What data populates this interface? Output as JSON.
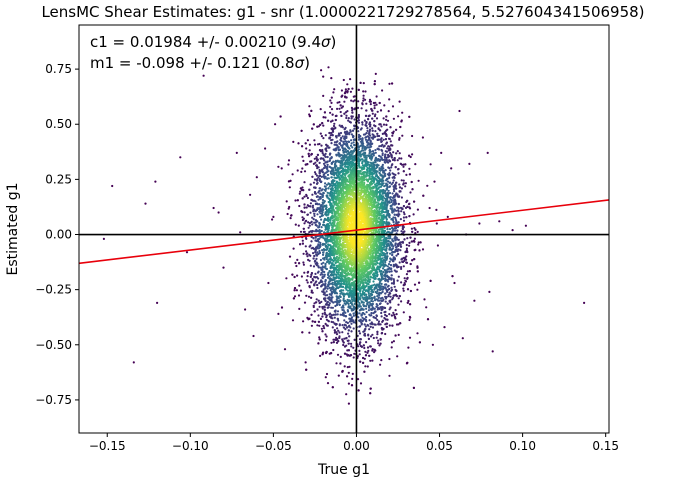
{
  "chart_data": {
    "type": "scatter",
    "title": "LensMC Shear Estimates: g1  - snr (1.0000221729278564, 5.527604341506958)",
    "xlabel": "True g1",
    "ylabel": "Estimated g1",
    "xlim": [
      -0.167,
      0.152
    ],
    "ylim": [
      -0.9,
      0.95
    ],
    "xticks": [
      -0.15,
      -0.1,
      -0.05,
      0.0,
      0.05,
      0.1,
      0.15
    ],
    "xtick_labels": [
      "−0.15",
      "−0.10",
      "−0.05",
      "0.00",
      "0.05",
      "0.10",
      "0.15"
    ],
    "yticks": [
      -0.75,
      -0.5,
      -0.25,
      0.0,
      0.25,
      0.5,
      0.75
    ],
    "ytick_labels": [
      "−0.75",
      "−0.50",
      "−0.25",
      "0.00",
      "0.25",
      "0.50",
      "0.75"
    ],
    "annotations": [
      {
        "prefix": "c1 = 0.01984 +/- 0.00210 (9.4",
        "sigma": "σ",
        "suffix": ")"
      },
      {
        "prefix": "m1 = -0.098 +/- 0.121 (0.8",
        "sigma": "σ",
        "suffix": ")"
      }
    ],
    "fit_line": {
      "intercept": 0.01984,
      "slope": 0.902,
      "color": "#e8000b"
    },
    "colormap": "viridis",
    "colors": {
      "low": "#440154",
      "mid": "#21918c",
      "high": "#fde725"
    },
    "zero_lines": true,
    "grid": false,
    "points": [
      [
        -0.152,
        -0.02
      ],
      [
        -0.147,
        0.22
      ],
      [
        -0.134,
        -0.58
      ],
      [
        -0.127,
        0.14
      ],
      [
        -0.121,
        0.24
      ],
      [
        -0.12,
        -0.31
      ],
      [
        -0.106,
        0.35
      ],
      [
        -0.102,
        -0.08
      ],
      [
        -0.092,
        0.72
      ],
      [
        -0.086,
        0.12
      ],
      [
        -0.083,
        0.1
      ],
      [
        -0.08,
        -0.15
      ],
      [
        -0.072,
        0.37
      ],
      [
        -0.07,
        0.01
      ],
      [
        -0.067,
        -0.34
      ],
      [
        -0.064,
        0.18
      ],
      [
        -0.062,
        -0.46
      ],
      [
        -0.06,
        0.26
      ],
      [
        -0.058,
        -0.03
      ],
      [
        -0.055,
        0.39
      ],
      [
        -0.053,
        -0.22
      ],
      [
        -0.05,
        0.08
      ],
      [
        -0.049,
        0.5
      ],
      [
        -0.047,
        -0.36
      ],
      [
        -0.045,
        0.3
      ],
      [
        -0.043,
        -0.52
      ],
      [
        -0.042,
        0.15
      ],
      [
        -0.04,
        -0.1
      ],
      [
        -0.038,
        0.42
      ],
      [
        -0.037,
        -0.28
      ],
      [
        0.04,
        0.44
      ],
      [
        0.042,
        -0.33
      ],
      [
        0.044,
        0.12
      ],
      [
        0.046,
        -0.5
      ],
      [
        0.047,
        0.24
      ],
      [
        0.049,
        -0.05
      ],
      [
        0.051,
        0.37
      ],
      [
        0.053,
        -0.42
      ],
      [
        0.055,
        0.08
      ],
      [
        0.057,
        0.3
      ],
      [
        0.059,
        -0.22
      ],
      [
        0.062,
        0.56
      ],
      [
        0.064,
        -0.47
      ],
      [
        0.066,
        0.0
      ],
      [
        0.068,
        0.32
      ],
      [
        0.071,
        -0.3
      ],
      [
        0.074,
        0.05
      ],
      [
        0.079,
        0.37
      ],
      [
        0.08,
        -0.26
      ],
      [
        0.082,
        -0.53
      ],
      [
        0.086,
        0.06
      ],
      [
        0.094,
        0.02
      ],
      [
        0.102,
        0.04
      ],
      [
        0.137,
        -0.31
      ]
    ]
  }
}
